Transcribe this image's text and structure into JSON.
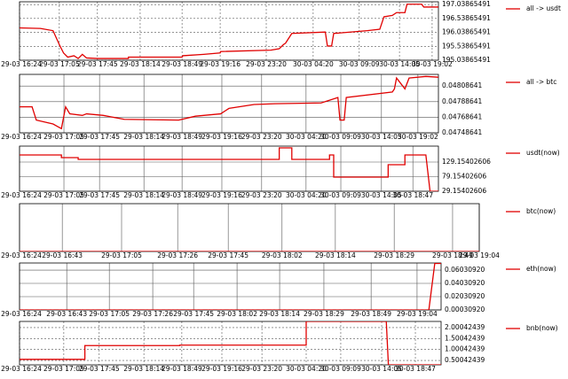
{
  "chart_data": [
    {
      "type": "line",
      "grid": "dashed",
      "series": [
        {
          "name": "all -> usdt",
          "color": "#e00000",
          "x": [
            0,
            5,
            8,
            9.5,
            10.5,
            11.5,
            13,
            14,
            15,
            16,
            18.6,
            26,
            26,
            38.8,
            39,
            44,
            47.9,
            48,
            60,
            62,
            63,
            63.5,
            65,
            73,
            73.5,
            74.5,
            75,
            83,
            86,
            87,
            89,
            90,
            92,
            92.5,
            96,
            96.5,
            100
          ],
          "values": [
            196.2,
            196.18,
            196.1,
            195.6,
            195.3,
            195.15,
            195.2,
            195.1,
            195.25,
            195.12,
            195.1,
            195.1,
            195.15,
            195.15,
            195.2,
            195.25,
            195.3,
            195.35,
            195.4,
            195.45,
            195.6,
            195.65,
            196.0,
            196.05,
            195.55,
            195.55,
            196.0,
            196.1,
            196.15,
            196.6,
            196.65,
            196.75,
            196.75,
            197.05,
            197.05,
            196.95,
            196.95
          ]
        }
      ],
      "xlim": [
        0,
        100
      ],
      "xticks": [
        {
          "value": 0,
          "label": "29-03 16:24"
        },
        {
          "value": 9.5,
          "label": "29-03 17:05"
        },
        {
          "value": 18.6,
          "label": "29-03 17:45"
        },
        {
          "value": 28.8,
          "label": "29-03 18:14"
        },
        {
          "value": 38.8,
          "label": "29-03 18:49"
        },
        {
          "value": 47.9,
          "label": "29-03 19:16"
        },
        {
          "value": 58.9,
          "label": "29-03 23:20"
        },
        {
          "value": 70.1,
          "label": "30-03 04:20"
        },
        {
          "value": 81.1,
          "label": "30-03 09:09"
        },
        {
          "value": 90.7,
          "label": "30-03 14:05"
        },
        {
          "value": 98.5,
          "label": "30-03 19:02"
        }
      ],
      "ylim": [
        195.03865491,
        197.13865491
      ],
      "yticks": [
        195.03865491,
        195.53865491,
        196.03865491,
        196.53865491,
        197.03865491
      ]
    },
    {
      "type": "line",
      "grid": "solid",
      "series": [
        {
          "name": "all -> btc",
          "color": "#e00000",
          "x": [
            0,
            3,
            4,
            8,
            10,
            11,
            12,
            15,
            16,
            20,
            25,
            38,
            42,
            48,
            50,
            56,
            61,
            72,
            76,
            76.5,
            77.5,
            78,
            89,
            89.5,
            90,
            92,
            93,
            97,
            100
          ],
          "values": [
            0.04782,
            0.04782,
            0.04765,
            0.0476,
            0.04754,
            0.04782,
            0.04773,
            0.04771,
            0.04773,
            0.04771,
            0.04766,
            0.04765,
            0.0477,
            0.04773,
            0.0478,
            0.04785,
            0.04786,
            0.04787,
            0.04794,
            0.04765,
            0.04765,
            0.04794,
            0.04801,
            0.04805,
            0.04819,
            0.04805,
            0.04819,
            0.04821,
            0.0482
          ]
        }
      ],
      "xlim": [
        0,
        100
      ],
      "xticks": [
        {
          "value": 0,
          "label": "29-03 16:24"
        },
        {
          "value": 10.6,
          "label": "29-03 17:05"
        },
        {
          "value": 19.1,
          "label": "29-03 17:45"
        },
        {
          "value": 29.7,
          "label": "29-03 18:14"
        },
        {
          "value": 38.8,
          "label": "29-03 18:49"
        },
        {
          "value": 48.3,
          "label": "29-03 19:16"
        },
        {
          "value": 57.8,
          "label": "29-03 23:20"
        },
        {
          "value": 68.4,
          "label": "30-03 04:20"
        },
        {
          "value": 76.7,
          "label": "30-03 09:09"
        },
        {
          "value": 86.4,
          "label": "30-03 14:05"
        },
        {
          "value": 95.1,
          "label": "30-03 19:02"
        }
      ],
      "ylim": [
        0.04748641,
        0.04823641
      ],
      "yticks": [
        0.04748641,
        0.04768641,
        0.04788641,
        0.04808641
      ]
    },
    {
      "type": "line",
      "grid": "solid",
      "series": [
        {
          "name": "usdt(now)",
          "color": "#e00000",
          "x": [
            0,
            10,
            10,
            14,
            14,
            62,
            62,
            65,
            65,
            74,
            74,
            75,
            75,
            88,
            88,
            92,
            92,
            97,
            98,
            100
          ],
          "values": [
            153.4,
            153.4,
            144.3,
            144.3,
            138.2,
            138.2,
            177.6,
            177.6,
            138.2,
            138.2,
            153.4,
            153.4,
            77.6,
            77.6,
            120,
            120,
            153.4,
            153.4,
            29.15,
            29.15
          ]
        }
      ],
      "xlim": [
        0,
        100
      ],
      "xticks": [
        {
          "value": 0,
          "label": "29-03 16:24"
        },
        {
          "value": 10.6,
          "label": "29-03 17:05"
        },
        {
          "value": 19.1,
          "label": "29-03 17:45"
        },
        {
          "value": 29.7,
          "label": "29-03 18:14"
        },
        {
          "value": 38.8,
          "label": "29-03 18:49"
        },
        {
          "value": 48.3,
          "label": "29-03 19:16"
        },
        {
          "value": 57.8,
          "label": "29-03 23:20"
        },
        {
          "value": 68.4,
          "label": "30-03 04:20"
        },
        {
          "value": 76.7,
          "label": "30-03 09:09"
        },
        {
          "value": 86.4,
          "label": "30-03 14:05"
        },
        {
          "value": 93.9,
          "label": "30-03 18:47"
        }
      ],
      "ylim": [
        29.15402606,
        183.65402606
      ],
      "yticks": [
        29.15402606,
        79.15402606,
        129.15402606
      ]
    },
    {
      "type": "line",
      "grid": "solid",
      "series": [
        {
          "name": "btc(now)",
          "color": "#e00000",
          "x": [
            0,
            100
          ],
          "values": [
            0,
            0
          ]
        }
      ],
      "xlim": [
        0,
        100
      ],
      "xticks": [
        {
          "value": 0,
          "label": "29-03 16:24"
        },
        {
          "value": 9.3,
          "label": "29-03 16:43"
        },
        {
          "value": 22.2,
          "label": "29-03 17:05"
        },
        {
          "value": 34.4,
          "label": "29-03 17:26"
        },
        {
          "value": 45.4,
          "label": "29-03 17:45"
        },
        {
          "value": 57.1,
          "label": "29-03 18:02"
        },
        {
          "value": 68.7,
          "label": "29-03 18:14"
        },
        {
          "value": 81.5,
          "label": "29-03 18:29"
        },
        {
          "value": 94.2,
          "label": "29-03 18:49"
        },
        {
          "value": 100,
          "label": "29-03 19:04"
        }
      ],
      "ylim": [
        0,
        1
      ],
      "yticks": []
    },
    {
      "type": "line",
      "grid": "solid",
      "series": [
        {
          "name": "eth(now)",
          "color": "#e00000",
          "x": [
            0,
            97.1,
            98.5,
            100
          ],
          "values": [
            0.0003092,
            0.0003092,
            0.0703,
            0.0703
          ]
        }
      ],
      "xlim": [
        0,
        100
      ],
      "xticks": [
        {
          "value": 0,
          "label": "29-03 16:24"
        },
        {
          "value": 11.2,
          "label": "29-03 16:43"
        },
        {
          "value": 21.3,
          "label": "29-03 17:05"
        },
        {
          "value": 31.6,
          "label": "29-03 17:26"
        },
        {
          "value": 41.3,
          "label": "29-03 17:45"
        },
        {
          "value": 51.6,
          "label": "29-03 18:02"
        },
        {
          "value": 61.7,
          "label": "29-03 18:14"
        },
        {
          "value": 72.2,
          "label": "29-03 18:29"
        },
        {
          "value": 83.4,
          "label": "29-03 18:49"
        },
        {
          "value": 94.3,
          "label": "29-03 19:04"
        }
      ],
      "ylim": [
        0.0003092,
        0.071
      ],
      "yticks": [
        {
          "value": 0.0003092,
          "label": "0.00030920"
        },
        {
          "value": 0.0203092,
          "label": "0.02030920"
        },
        {
          "value": 0.0403092,
          "label": "0.04030920"
        },
        {
          "value": 0.0603092,
          "label": "0.06030920"
        }
      ]
    },
    {
      "type": "line",
      "grid": "dashed",
      "series": [
        {
          "name": "bnb(now)",
          "color": "#e00000",
          "x": [
            0,
            15.5,
            15.5,
            38,
            38,
            68,
            68,
            87,
            87.5,
            100
          ],
          "values": [
            0.55,
            0.55,
            1.18,
            1.18,
            1.2,
            1.2,
            2.28,
            2.28,
            0.3,
            0.3
          ]
        }
      ],
      "xlim": [
        0,
        100
      ],
      "xticks": [
        {
          "value": 0,
          "label": "29-03 16:24"
        },
        {
          "value": 10.5,
          "label": "29-03 17:05"
        },
        {
          "value": 18.9,
          "label": "29-03 17:45"
        },
        {
          "value": 29.5,
          "label": "29-03 18:14"
        },
        {
          "value": 38.5,
          "label": "29-03 18:49"
        },
        {
          "value": 48,
          "label": "29-03 19:16"
        },
        {
          "value": 57.5,
          "label": "29-03 23:20"
        },
        {
          "value": 68,
          "label": "30-03 04:20"
        },
        {
          "value": 76.2,
          "label": "30-03 09:09"
        },
        {
          "value": 85.9,
          "label": "30-03 14:05"
        },
        {
          "value": 93.9,
          "label": "30-03 18:47"
        }
      ],
      "ylim": [
        0.30042439,
        2.28
      ],
      "yticks": [
        0.50042439,
        1.00042439,
        1.50042439,
        2.00042439
      ]
    }
  ]
}
